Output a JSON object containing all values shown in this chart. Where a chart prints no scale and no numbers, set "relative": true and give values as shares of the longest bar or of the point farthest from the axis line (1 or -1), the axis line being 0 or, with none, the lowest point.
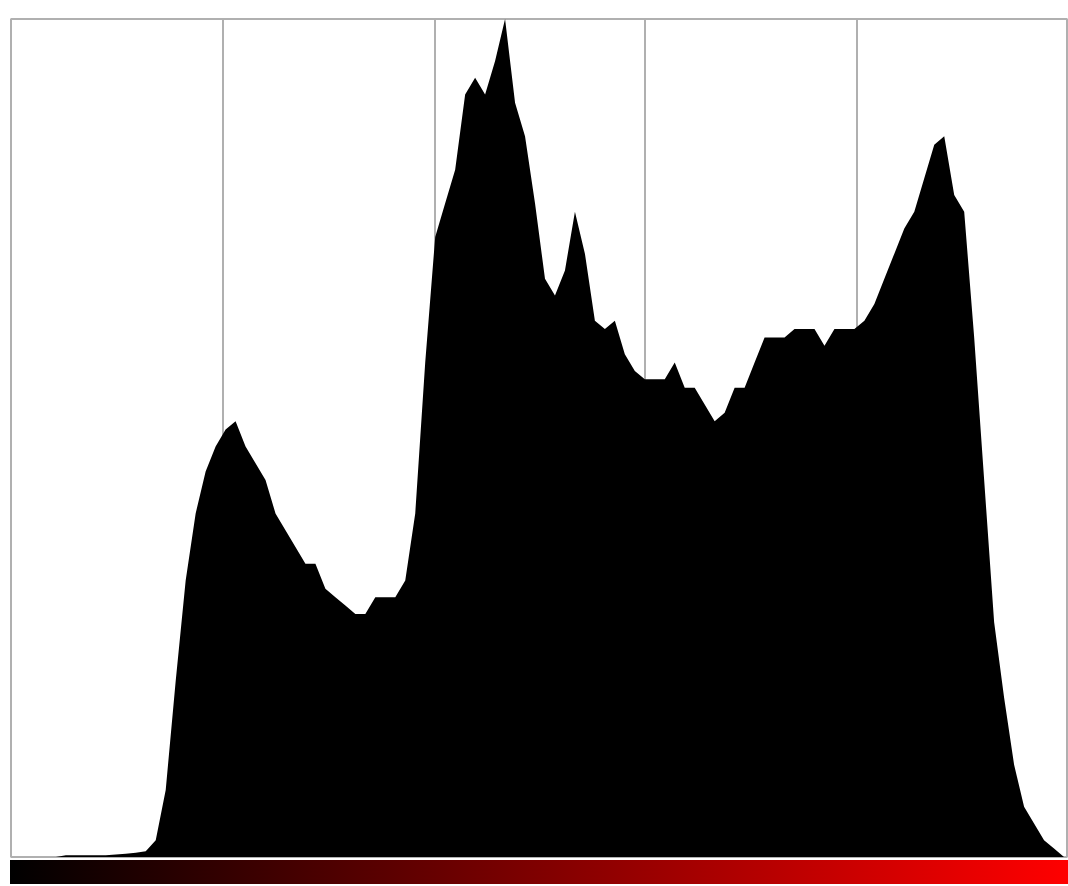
{
  "chart_data": {
    "type": "area",
    "relative": true,
    "color": "#000000",
    "grid": "x",
    "categories": [
      null,
      null,
      null,
      null,
      null,
      null,
      null,
      null,
      null,
      null,
      null,
      null,
      null,
      null,
      null,
      null,
      null,
      null,
      null,
      null,
      null,
      null,
      null,
      null,
      null,
      null,
      null,
      null,
      null,
      null,
      null,
      null,
      null,
      null,
      null,
      null,
      null,
      null,
      null,
      null,
      null,
      null,
      null,
      null,
      null,
      null,
      null,
      null,
      null,
      null,
      null,
      null,
      null,
      null,
      null,
      null,
      null,
      null,
      null,
      null,
      null,
      null,
      null,
      null,
      null,
      null,
      null,
      null,
      null,
      null,
      null,
      null,
      null,
      null,
      null,
      null,
      null,
      null,
      null,
      null,
      null,
      null,
      null,
      null,
      null,
      null,
      null,
      null,
      null,
      null,
      null,
      null,
      null,
      null,
      null,
      null,
      null,
      null,
      null,
      null,
      null,
      null,
      null,
      null,
      null,
      null
    ],
    "values": [
      0,
      0,
      0,
      0,
      0,
      0.002,
      0.002,
      0.002,
      0.002,
      0.002,
      0.003,
      0.004,
      0.005,
      0.007,
      0.02,
      0.08,
      0.21,
      0.33,
      0.41,
      0.46,
      0.49,
      0.51,
      0.52,
      0.49,
      0.47,
      0.45,
      0.41,
      0.39,
      0.37,
      0.35,
      0.35,
      0.32,
      0.31,
      0.3,
      0.29,
      0.29,
      0.31,
      0.31,
      0.31,
      0.33,
      0.41,
      0.59,
      0.74,
      0.78,
      0.82,
      0.91,
      0.93,
      0.91,
      0.95,
      1.0,
      0.9,
      0.86,
      0.78,
      0.69,
      0.67,
      0.7,
      0.77,
      0.72,
      0.64,
      0.63,
      0.64,
      0.6,
      0.58,
      0.57,
      0.57,
      0.57,
      0.59,
      0.56,
      0.56,
      0.54,
      0.52,
      0.53,
      0.56,
      0.56,
      0.59,
      0.62,
      0.62,
      0.62,
      0.63,
      0.63,
      0.63,
      0.61,
      0.63,
      0.63,
      0.63,
      0.64,
      0.66,
      0.69,
      0.72,
      0.75,
      0.77,
      0.81,
      0.85,
      0.86,
      0.79,
      0.77,
      0.62,
      0.45,
      0.28,
      0.19,
      0.11,
      0.06,
      0.04,
      0.02,
      0.01,
      0
    ]
  }
}
